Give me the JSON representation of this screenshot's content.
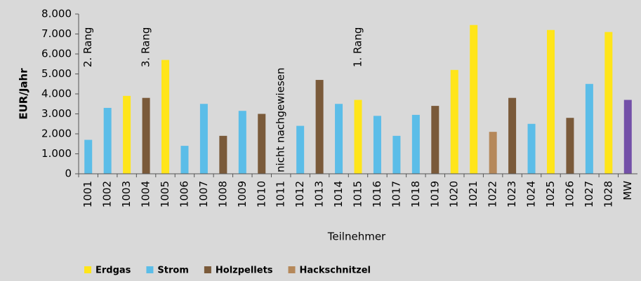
{
  "chart_data": {
    "type": "bar",
    "categories": [
      "1001",
      "1002",
      "1003",
      "1004",
      "1005",
      "1006",
      "1007",
      "1008",
      "1009",
      "1010",
      "1011",
      "1012",
      "1013",
      "1014",
      "1015",
      "1016",
      "1017",
      "1018",
      "1019",
      "1020",
      "1021",
      "1022",
      "1023",
      "1024",
      "1025",
      "1026",
      "1027",
      "1028",
      "MW"
    ],
    "values": [
      1700,
      3300,
      3900,
      3800,
      5700,
      1400,
      3500,
      1900,
      3150,
      3000,
      null,
      2400,
      4700,
      3500,
      3700,
      2900,
      1900,
      2950,
      3400,
      5200,
      7450,
      2100,
      3800,
      2500,
      7200,
      2800,
      4500,
      7100,
      3700
    ],
    "colors": [
      "#5bbde8",
      "#5bbde8",
      "#ffe51a",
      "#7a5a3a",
      "#ffe51a",
      "#5bbde8",
      "#5bbde8",
      "#7a5a3a",
      "#5bbde8",
      "#7a5a3a",
      null,
      "#5bbde8",
      "#7a5a3a",
      "#5bbde8",
      "#ffe51a",
      "#5bbde8",
      "#5bbde8",
      "#5bbde8",
      "#7a5a3a",
      "#ffe51a",
      "#ffe51a",
      "#b5885a",
      "#7a5a3a",
      "#5bbde8",
      "#ffe51a",
      "#7a5a3a",
      "#5bbde8",
      "#ffe51a",
      "#7350a8"
    ],
    "legend": [
      {
        "name": "Erdgas",
        "color": "#ffe51a"
      },
      {
        "name": "Strom",
        "color": "#5bbde8"
      },
      {
        "name": "Holzpellets",
        "color": "#7a5a3a"
      },
      {
        "name": "Hackschnitzel",
        "color": "#b5885a"
      }
    ],
    "annotations": [
      {
        "category": "1001",
        "text": "2. Rang"
      },
      {
        "category": "1004",
        "text": "3. Rang"
      },
      {
        "category": "1011",
        "text": "nicht nachgewiesen"
      },
      {
        "category": "1015",
        "text": "1. Rang"
      }
    ],
    "y_label": "EUR/Jahr",
    "x_label": "Teilnehmer",
    "ylim": [
      0,
      8000
    ],
    "yticks": [
      0,
      {
        "value": 1000,
        "label": "1.000"
      },
      {
        "value": 2000,
        "label": "2.000"
      },
      {
        "value": 3000,
        "label": "3.000"
      },
      {
        "value": 4000,
        "label": "4.000"
      },
      {
        "value": 5000,
        "label": "5.000"
      },
      {
        "value": 6000,
        "label": "6.000"
      },
      {
        "value": 7000,
        "label": "7.000"
      },
      {
        "value": 8000,
        "label": "8.000"
      }
    ]
  }
}
